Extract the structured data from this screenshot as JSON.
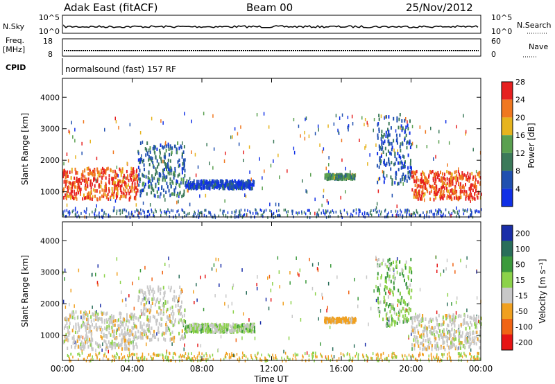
{
  "header": {
    "station": "Adak East (fitACF)",
    "beam": "Beam 00",
    "date": "25/Nov/2012"
  },
  "status_panels": {
    "nsky": {
      "label": "N.Sky",
      "ticks": [
        "10^5",
        "10^0"
      ]
    },
    "nsearch": {
      "label": "N.Search",
      "ticks": [
        "10^5",
        "10^0"
      ]
    },
    "freq": {
      "label_top": "Freq.",
      "label_unit": "[MHz]",
      "ticks": [
        "18",
        "8"
      ]
    },
    "nave": {
      "label": "Nave",
      "ticks": [
        "60",
        "0"
      ]
    },
    "cpid": {
      "label": "CPID",
      "value": "normalsound (fast) 157 RF"
    }
  },
  "chart_data": [
    {
      "type": "heatmap",
      "title": "",
      "xlabel": "",
      "ylabel": "Slant Range [km]",
      "ylim": [
        200,
        4600
      ],
      "yticks": [
        "1000",
        "2000",
        "3000",
        "4000"
      ],
      "colorbar": {
        "label": "Power [dB]",
        "ticks": [
          "4",
          "8",
          "12",
          "16",
          "20",
          "24",
          "28"
        ],
        "colors": [
          "#1030e6",
          "#2050b0",
          "#3c7a5a",
          "#5aa050",
          "#e6b41e",
          "#f07820",
          "#e62020"
        ]
      },
      "regions": [
        {
          "x": [
            0.0,
            4.3
          ],
          "range": [
            800,
            1800
          ],
          "level": 26
        },
        {
          "x": [
            4.3,
            7.0
          ],
          "range": [
            900,
            2600
          ],
          "level": 10
        },
        {
          "x": [
            7.0,
            11.0
          ],
          "range": [
            1150,
            1400
          ],
          "level": 6
        },
        {
          "x": [
            15.0,
            16.8
          ],
          "range": [
            1450,
            1600
          ],
          "level": 14
        },
        {
          "x": [
            18.0,
            20.0
          ],
          "range": [
            1300,
            3500
          ],
          "level": 8
        },
        {
          "x": [
            20.0,
            24.0
          ],
          "range": [
            800,
            1700
          ],
          "level": 26
        }
      ]
    },
    {
      "type": "heatmap",
      "title": "",
      "xlabel": "Time UT",
      "ylabel": "Slant Range [km]",
      "ylim": [
        200,
        4600
      ],
      "yticks": [
        "1000",
        "2000",
        "3000",
        "4000"
      ],
      "xticks": [
        "00:00",
        "04:00",
        "08:00",
        "12:00",
        "16:00",
        "20:00",
        "00:00"
      ],
      "colorbar": {
        "label": "Velocity [m s⁻¹]",
        "ticks": [
          "200",
          "100",
          "50",
          "15",
          "-15",
          "-50",
          "-100",
          "-200"
        ],
        "colors": [
          "#1a2ea8",
          "#2a6e5a",
          "#3c9a3c",
          "#8cd24a",
          "#c8c8c8",
          "#f0a020",
          "#f06414",
          "#e61414"
        ]
      },
      "regions": [
        {
          "x": [
            0.0,
            4.3
          ],
          "range": [
            600,
            1800
          ],
          "level": 0
        },
        {
          "x": [
            4.3,
            7.0
          ],
          "range": [
            900,
            2600
          ],
          "level": 0
        },
        {
          "x": [
            7.0,
            11.0
          ],
          "range": [
            1150,
            1400
          ],
          "level": 20
        },
        {
          "x": [
            15.0,
            16.8
          ],
          "range": [
            1450,
            1600
          ],
          "level": -30
        },
        {
          "x": [
            18.0,
            20.0
          ],
          "range": [
            1300,
            3500
          ],
          "level": 25
        },
        {
          "x": [
            20.0,
            24.0
          ],
          "range": [
            600,
            1700
          ],
          "level": 0
        }
      ]
    }
  ]
}
